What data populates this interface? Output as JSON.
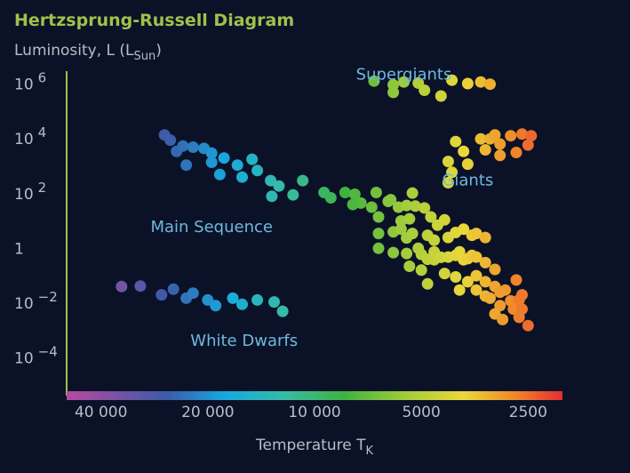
{
  "chart_data": {
    "type": "scatter",
    "title": "Hertzsprung-Russell Diagram",
    "ylabel": {
      "main": "Luminosity, L (L",
      "sub": "Sun",
      "tail": ")"
    },
    "xlabel": {
      "main": "Temperature T",
      "sub": "K"
    },
    "x_scale": "log-reversed",
    "y_scale": "log",
    "xlim": [
      50000,
      2000
    ],
    "ylim": [
      6e-06,
      3000000
    ],
    "x_ticks": [
      {
        "value": 40000,
        "label": "40 000"
      },
      {
        "value": 20000,
        "label": "20 000"
      },
      {
        "value": 10000,
        "label": "10 000"
      },
      {
        "value": 5000,
        "label": "5000"
      },
      {
        "value": 2500,
        "label": "2500"
      }
    ],
    "y_ticks": [
      {
        "value": 1000000,
        "base": "10",
        "exp": "6"
      },
      {
        "value": 10000,
        "base": "10",
        "exp": "4"
      },
      {
        "value": 100,
        "base": "10",
        "exp": "2"
      },
      {
        "value": 1,
        "base": "1",
        "exp": ""
      },
      {
        "value": 0.01,
        "base": "10",
        "exp": "−2"
      },
      {
        "value": 0.0001,
        "base": "10",
        "exp": "−4"
      }
    ],
    "regions": [
      {
        "name": "Supergiants",
        "temperature": 5600,
        "luminosity": 1500000
      },
      {
        "name": "Giants",
        "temperature": 3700,
        "luminosity": 200
      },
      {
        "name": "Main Sequence",
        "temperature": 19500,
        "luminosity": 4
      },
      {
        "name": "White Dwarfs",
        "temperature": 15800,
        "luminosity": 0.00027
      }
    ],
    "grid": false,
    "legend": "none",
    "colorbar": "temperature gradient along x-axis",
    "stars": [
      [
        26500,
        14000
      ],
      [
        25500,
        9000
      ],
      [
        24500,
        3500
      ],
      [
        23500,
        5500
      ],
      [
        22000,
        5000
      ],
      [
        20500,
        4500
      ],
      [
        19500,
        3000
      ],
      [
        23000,
        1100
      ],
      [
        19500,
        1400
      ],
      [
        18000,
        2000
      ],
      [
        18500,
        500
      ],
      [
        16500,
        1100
      ],
      [
        16000,
        400
      ],
      [
        15000,
        1800
      ],
      [
        14500,
        700
      ],
      [
        13300,
        300
      ],
      [
        12600,
        190
      ],
      [
        11500,
        90
      ],
      [
        13200,
        80
      ],
      [
        10800,
        300
      ],
      [
        9400,
        110
      ],
      [
        9000,
        70
      ],
      [
        8200,
        110
      ],
      [
        7700,
        95
      ],
      [
        7400,
        45
      ],
      [
        6700,
        110
      ],
      [
        6100,
        60
      ],
      [
        5300,
        105
      ],
      [
        7800,
        40
      ],
      [
        6900,
        32
      ],
      [
        6200,
        52
      ],
      [
        5800,
        32
      ],
      [
        5500,
        37
      ],
      [
        5200,
        35
      ],
      [
        6600,
        14
      ],
      [
        5700,
        10
      ],
      [
        5400,
        12
      ],
      [
        4900,
        30
      ],
      [
        4700,
        14
      ],
      [
        4500,
        7
      ],
      [
        4300,
        11
      ],
      [
        6600,
        3.5
      ],
      [
        6000,
        4
      ],
      [
        5700,
        5
      ],
      [
        5500,
        2.4
      ],
      [
        5300,
        3.5
      ],
      [
        4800,
        3
      ],
      [
        4600,
        2
      ],
      [
        4200,
        2.5
      ],
      [
        4000,
        3.8
      ],
      [
        3800,
        5
      ],
      [
        3600,
        3
      ],
      [
        3500,
        3.5
      ],
      [
        3300,
        2.5
      ],
      [
        6600,
        1
      ],
      [
        6000,
        0.7
      ],
      [
        5500,
        0.65
      ],
      [
        5100,
        1
      ],
      [
        5000,
        0.6
      ],
      [
        4800,
        0.4
      ],
      [
        4600,
        0.38
      ],
      [
        4600,
        0.75
      ],
      [
        4400,
        0.47
      ],
      [
        4200,
        0.48
      ],
      [
        4000,
        0.55
      ],
      [
        3900,
        0.75
      ],
      [
        3800,
        0.38
      ],
      [
        3700,
        0.42
      ],
      [
        3600,
        0.55
      ],
      [
        3500,
        0.48
      ],
      [
        3300,
        0.3
      ],
      [
        3100,
        0.17
      ],
      [
        5400,
        0.22
      ],
      [
        5000,
        0.16
      ],
      [
        4300,
        0.12
      ],
      [
        4000,
        0.09
      ],
      [
        3700,
        0.06
      ],
      [
        3500,
        0.1
      ],
      [
        3300,
        0.06
      ],
      [
        3100,
        0.04
      ],
      [
        2900,
        0.03
      ],
      [
        2700,
        0.07
      ],
      [
        4800,
        0.05
      ],
      [
        3900,
        0.03
      ],
      [
        3500,
        0.03
      ],
      [
        3300,
        0.018
      ],
      [
        3200,
        0.015
      ],
      [
        3000,
        0.025
      ],
      [
        2800,
        0.012
      ],
      [
        2650,
        0.013
      ],
      [
        2600,
        0.02
      ],
      [
        3000,
        0.008
      ],
      [
        2750,
        0.006
      ],
      [
        2600,
        0.006
      ],
      [
        3100,
        0.004
      ],
      [
        2950,
        0.0025
      ],
      [
        2650,
        0.003
      ],
      [
        2500,
        0.0015
      ],
      [
        6800,
        1300000
      ],
      [
        6000,
        950000
      ],
      [
        6000,
        500000
      ],
      [
        5600,
        1200000
      ],
      [
        5100,
        1100000
      ],
      [
        4900,
        600000
      ],
      [
        4400,
        370000
      ],
      [
        4100,
        1400000
      ],
      [
        3700,
        1050000
      ],
      [
        3400,
        1200000
      ],
      [
        3200,
        1000000
      ],
      [
        4000,
        8000
      ],
      [
        4200,
        1500
      ],
      [
        3400,
        10000
      ],
      [
        3200,
        10000
      ],
      [
        3100,
        14000
      ],
      [
        3300,
        4000
      ],
      [
        3000,
        6500
      ],
      [
        3000,
        2500
      ],
      [
        2800,
        13000
      ],
      [
        2600,
        15000
      ],
      [
        2500,
        6000
      ],
      [
        2450,
        13000
      ],
      [
        2700,
        3200
      ],
      [
        3700,
        1200
      ],
      [
        3800,
        3500
      ],
      [
        4200,
        250
      ],
      [
        4100,
        600
      ],
      [
        35000,
        0.04
      ],
      [
        31000,
        0.042
      ],
      [
        27000,
        0.02
      ],
      [
        25000,
        0.032
      ],
      [
        23000,
        0.015
      ],
      [
        22000,
        0.023
      ],
      [
        20000,
        0.013
      ],
      [
        19000,
        0.008
      ],
      [
        17000,
        0.015
      ],
      [
        16000,
        0.009
      ],
      [
        14500,
        0.013
      ],
      [
        13000,
        0.011
      ],
      [
        12300,
        0.005
      ]
    ]
  }
}
